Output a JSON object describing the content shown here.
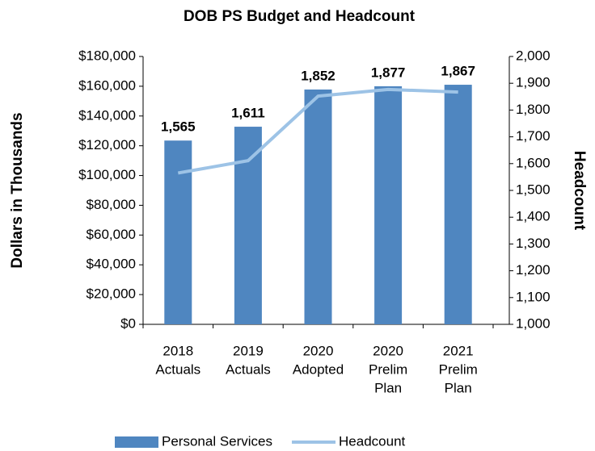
{
  "chart_data": {
    "type": "bar_line",
    "title": "DOB PS Budget and Headcount",
    "y_label": "Dollars in Thousands",
    "y2_label": "Headcount",
    "categories": [
      [
        "2018",
        "Actuals"
      ],
      [
        "2019",
        "Actuals"
      ],
      [
        "2020",
        "Adopted"
      ],
      [
        "2020",
        "Prelim",
        "Plan"
      ],
      [
        "2021",
        "Prelim",
        "Plan"
      ]
    ],
    "series": [
      {
        "name": "Personal Services",
        "color": "#4f86c0",
        "type": "bar",
        "values": [
          123500,
          132800,
          157800,
          160000,
          161000
        ]
      },
      {
        "name": "Headcount",
        "color": "#9dc3e6",
        "type": "line",
        "axis": "y2",
        "values": [
          1565,
          1611,
          1852,
          1877,
          1867
        ],
        "value_labels": [
          "1,565",
          "1,611",
          "1,852",
          "1,877",
          "1,867"
        ]
      }
    ],
    "ylim": [
      0,
      180000
    ],
    "yticks": [
      {
        "value": 0,
        "label": "$0"
      },
      {
        "value": 20000,
        "label": "$20,000"
      },
      {
        "value": 40000,
        "label": "$40,000"
      },
      {
        "value": 60000,
        "label": "$60,000"
      },
      {
        "value": 80000,
        "label": "$80,000"
      },
      {
        "value": 100000,
        "label": "$100,000"
      },
      {
        "value": 120000,
        "label": "$120,000"
      },
      {
        "value": 140000,
        "label": "$140,000"
      },
      {
        "value": 160000,
        "label": "$160,000"
      },
      {
        "value": 180000,
        "label": "$180,000"
      }
    ],
    "y2lim": [
      1000,
      2000
    ],
    "y2ticks": [
      {
        "value": 1000,
        "label": "1,000"
      },
      {
        "value": 1100,
        "label": "1,100"
      },
      {
        "value": 1200,
        "label": "1,200"
      },
      {
        "value": 1300,
        "label": "1,300"
      },
      {
        "value": 1400,
        "label": "1,400"
      },
      {
        "value": 1500,
        "label": "1,500"
      },
      {
        "value": 1600,
        "label": "1,600"
      },
      {
        "value": 1700,
        "label": "1,700"
      },
      {
        "value": 1800,
        "label": "1,800"
      },
      {
        "value": 1900,
        "label": "1,900"
      },
      {
        "value": 2000,
        "label": "2,000"
      }
    ]
  }
}
